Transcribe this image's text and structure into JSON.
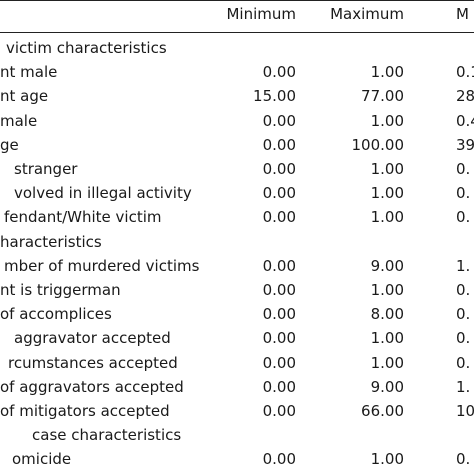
{
  "table": {
    "headers": [
      "Minimum",
      "Maximum",
      "M"
    ],
    "rows": [
      {
        "label": "victim characteristics",
        "values": [
          "",
          "",
          ""
        ]
      },
      {
        "label": "nt male",
        "values": [
          "0.00",
          "1.00",
          "0.1"
        ]
      },
      {
        "label": "nt age",
        "values": [
          "15.00",
          "77.00",
          "28."
        ]
      },
      {
        "label": "male",
        "values": [
          "0.00",
          "1.00",
          "0.4"
        ]
      },
      {
        "label": "ge",
        "values": [
          "0.00",
          "100.00",
          "39."
        ]
      },
      {
        "label": "stranger",
        "values": [
          "0.00",
          "1.00",
          "0."
        ]
      },
      {
        "label": "volved in illegal activity",
        "values": [
          "0.00",
          "1.00",
          "0."
        ]
      },
      {
        "label": "fendant/White victim",
        "values": [
          "0.00",
          "1.00",
          "0."
        ]
      },
      {
        "label": "haracteristics",
        "values": [
          "",
          "",
          ""
        ]
      },
      {
        "label": "mber of murdered victims",
        "values": [
          "0.00",
          "9.00",
          "1."
        ]
      },
      {
        "label": "nt is triggerman",
        "values": [
          "0.00",
          "1.00",
          "0."
        ]
      },
      {
        "label": "of accomplices",
        "values": [
          "0.00",
          "8.00",
          "0."
        ]
      },
      {
        "label": "aggravator accepted",
        "values": [
          "0.00",
          "1.00",
          "0."
        ]
      },
      {
        "label": "rcumstances accepted",
        "values": [
          "0.00",
          "1.00",
          "0."
        ]
      },
      {
        "label": "of aggravators accepted",
        "values": [
          "0.00",
          "9.00",
          "1."
        ]
      },
      {
        "label": "of mitigators accepted",
        "values": [
          "0.00",
          "66.00",
          "10."
        ]
      },
      {
        "label": "case characteristics",
        "values": [
          "",
          "",
          ""
        ]
      },
      {
        "label": "omicide",
        "values": [
          "0.00",
          "1.00",
          "0."
        ]
      }
    ]
  }
}
